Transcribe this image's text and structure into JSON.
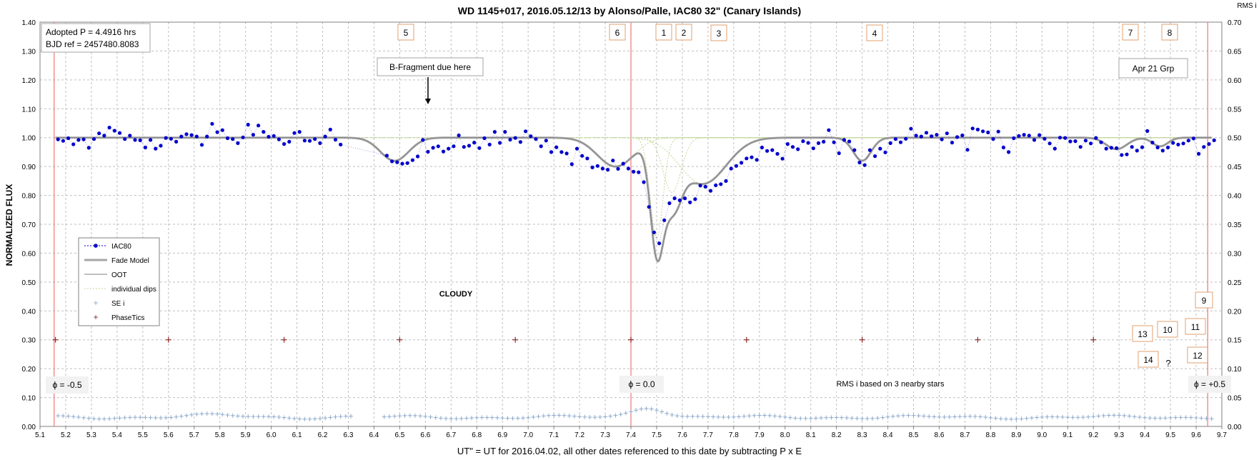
{
  "chart_data": {
    "type": "scatter",
    "title": "WD 1145+017, 2016.05.12/13  by Alonso/Palle,  IAC80 32\" (Canary Islands)",
    "xlabel": "UT\"  = UT for 2016.04.02, all other dates referenced to this date by subtracting P x E",
    "ylabel": "NORMALIZED FLUX",
    "y2label": "RMS i",
    "xlim": [
      5.1,
      9.7
    ],
    "ylim": [
      0.0,
      1.4
    ],
    "y2lim": [
      0.0,
      0.7
    ],
    "grid": true,
    "legend_position": "left-middle",
    "x_ticks": [
      "5.1",
      "5.2",
      "5.3",
      "5.4",
      "5.5",
      "5.6",
      "5.7",
      "5.8",
      "5.9",
      "6.0",
      "6.1",
      "6.2",
      "6.3",
      "6.4",
      "6.5",
      "6.6",
      "6.7",
      "6.8",
      "6.9",
      "7.0",
      "7.1",
      "7.2",
      "7.3",
      "7.4",
      "7.5",
      "7.6",
      "7.7",
      "7.8",
      "7.9",
      "8.0",
      "8.1",
      "8.2",
      "8.3",
      "8.4",
      "8.5",
      "8.6",
      "8.7",
      "8.8",
      "8.9",
      "9.0",
      "9.1",
      "9.2",
      "9.3",
      "9.4",
      "9.5",
      "9.6",
      "9.7"
    ],
    "y_ticks": [
      "0.00",
      "0.10",
      "0.20",
      "0.30",
      "0.40",
      "0.50",
      "0.60",
      "0.70",
      "0.80",
      "0.90",
      "1.00",
      "1.10",
      "1.20",
      "1.30",
      "1.40"
    ],
    "y2_ticks": [
      "0.00",
      "0.05",
      "0.10",
      "0.15",
      "0.20",
      "0.25",
      "0.30",
      "0.35",
      "0.40",
      "0.45",
      "0.50",
      "0.55",
      "0.60",
      "0.65",
      "0.70"
    ],
    "legend": [
      "IAC80",
      "Fade Model",
      "OOT",
      "individual dips",
      "SE i",
      "PhaseTics"
    ],
    "colors": {
      "iac80": "#0000cc",
      "fade": "#a6a6a6",
      "oot": "#808080",
      "dips": "#c4d79b",
      "sei": "#8eaacb",
      "phasetics": "#8b2c2c",
      "phase_line": "#f08080",
      "grid": "#bfbfbf",
      "box_border": "#e0a070"
    },
    "dips": [
      {
        "x": 6.48,
        "depth": 0.08,
        "w": 0.055
      },
      {
        "x": 7.34,
        "depth": 0.1,
        "w": 0.07
      },
      {
        "x": 7.5,
        "depth": 0.35,
        "w": 0.025
      },
      {
        "x": 7.56,
        "depth": 0.19,
        "w": 0.035
      },
      {
        "x": 7.68,
        "depth": 0.16,
        "w": 0.09
      },
      {
        "x": 8.3,
        "depth": 0.08,
        "w": 0.035
      },
      {
        "x": 9.29,
        "depth": 0.04,
        "w": 0.04
      },
      {
        "x": 9.46,
        "depth": 0.03,
        "w": 0.03
      }
    ],
    "phase_tics": [
      5.16,
      5.6,
      6.05,
      6.5,
      6.95,
      7.4,
      7.85,
      8.3,
      8.75,
      9.2
    ],
    "phase_tic_y": 0.3,
    "phase_lines": [
      5.155,
      7.4,
      9.645
    ],
    "series": [
      {
        "name": "IAC80",
        "points": [
          [
            5.17,
            0.994
          ],
          [
            5.19,
            0.989
          ],
          [
            5.21,
            0.998
          ],
          [
            5.23,
            0.977
          ],
          [
            5.25,
            0.992
          ],
          [
            5.27,
            0.994
          ],
          [
            5.29,
            0.965
          ],
          [
            5.31,
            0.995
          ],
          [
            5.33,
            1.015
          ],
          [
            5.35,
            1.007
          ],
          [
            5.37,
            1.035
          ],
          [
            5.39,
            1.024
          ],
          [
            5.41,
            1.016
          ],
          [
            5.43,
            0.995
          ],
          [
            5.45,
            1.007
          ],
          [
            5.47,
            0.992
          ],
          [
            5.49,
            0.991
          ],
          [
            5.51,
            0.966
          ],
          [
            5.53,
            0.992
          ],
          [
            5.55,
            0.962
          ],
          [
            5.57,
            0.972
          ],
          [
            5.59,
            0.999
          ],
          [
            5.61,
            0.996
          ],
          [
            5.63,
            0.986
          ],
          [
            5.65,
            1.004
          ],
          [
            5.67,
            1.012
          ],
          [
            5.69,
            1.009
          ],
          [
            5.71,
            1.004
          ],
          [
            5.73,
            0.975
          ],
          [
            5.75,
            1.004
          ],
          [
            5.77,
            1.048
          ],
          [
            5.79,
            1.019
          ],
          [
            5.81,
            1.026
          ],
          [
            5.83,
            0.998
          ],
          [
            5.85,
            0.995
          ],
          [
            5.87,
            0.981
          ],
          [
            5.89,
            1.001
          ],
          [
            5.91,
            1.045
          ],
          [
            5.93,
            1.01
          ],
          [
            5.95,
            1.042
          ],
          [
            5.97,
            1.02
          ],
          [
            5.99,
            1.003
          ],
          [
            6.01,
            1.006
          ],
          [
            6.03,
            0.994
          ],
          [
            6.05,
            0.978
          ],
          [
            6.07,
            0.986
          ],
          [
            6.09,
            1.016
          ],
          [
            6.11,
            1.02
          ],
          [
            6.13,
            0.99
          ],
          [
            6.15,
            0.989
          ],
          [
            6.17,
            0.995
          ],
          [
            6.19,
            0.981
          ],
          [
            6.21,
            1.004
          ],
          [
            6.23,
            1.028
          ],
          [
            6.25,
            0.993
          ],
          [
            6.27,
            0.976
          ],
          [
            6.45,
            0.938
          ],
          [
            6.47,
            0.918
          ],
          [
            6.49,
            0.915
          ],
          [
            6.51,
            0.91
          ],
          [
            6.53,
            0.912
          ],
          [
            6.55,
            0.922
          ],
          [
            6.57,
            0.935
          ],
          [
            6.59,
            0.992
          ],
          [
            6.61,
            0.951
          ],
          [
            6.63,
            0.965
          ],
          [
            6.65,
            0.97
          ],
          [
            6.67,
            0.952
          ],
          [
            6.69,
            0.962
          ],
          [
            6.71,
            0.97
          ],
          [
            6.73,
            1.008
          ],
          [
            6.75,
            0.968
          ],
          [
            6.77,
            0.972
          ],
          [
            6.79,
            0.983
          ],
          [
            6.81,
            0.964
          ],
          [
            6.83,
            0.998
          ],
          [
            6.85,
            0.976
          ],
          [
            6.87,
            1.02
          ],
          [
            6.89,
            0.982
          ],
          [
            6.91,
            1.02
          ],
          [
            6.93,
            0.993
          ],
          [
            6.95,
            0.999
          ],
          [
            6.97,
            0.985
          ],
          [
            6.99,
            1.022
          ],
          [
            7.01,
            1.005
          ],
          [
            7.03,
            0.995
          ],
          [
            7.05,
            0.97
          ],
          [
            7.07,
            0.99
          ],
          [
            7.09,
            0.95
          ],
          [
            7.11,
            0.967
          ],
          [
            7.13,
            0.95
          ],
          [
            7.15,
            0.945
          ],
          [
            7.17,
            0.908
          ],
          [
            7.19,
            0.962
          ],
          [
            7.21,
            0.937
          ],
          [
            7.23,
            0.928
          ],
          [
            7.25,
            0.897
          ],
          [
            7.27,
            0.902
          ],
          [
            7.29,
            0.893
          ],
          [
            7.31,
            0.889
          ],
          [
            7.33,
            0.921
          ],
          [
            7.35,
            0.892
          ],
          [
            7.37,
            0.91
          ],
          [
            7.39,
            0.893
          ],
          [
            7.41,
            0.882
          ],
          [
            7.43,
            0.88
          ],
          [
            7.45,
            0.846
          ],
          [
            7.47,
            0.76
          ],
          [
            7.49,
            0.672
          ],
          [
            7.51,
            0.634
          ],
          [
            7.53,
            0.714
          ],
          [
            7.55,
            0.773
          ],
          [
            7.57,
            0.79
          ],
          [
            7.59,
            0.783
          ],
          [
            7.61,
            0.79
          ],
          [
            7.63,
            0.776
          ],
          [
            7.65,
            0.787
          ],
          [
            7.67,
            0.834
          ],
          [
            7.69,
            0.83
          ],
          [
            7.71,
            0.816
          ],
          [
            7.73,
            0.835
          ],
          [
            7.75,
            0.839
          ],
          [
            7.77,
            0.85
          ],
          [
            7.79,
            0.893
          ],
          [
            7.81,
            0.902
          ],
          [
            7.83,
            0.913
          ],
          [
            7.85,
            0.928
          ],
          [
            7.87,
            0.932
          ],
          [
            7.89,
            0.923
          ],
          [
            7.91,
            0.966
          ],
          [
            7.93,
            0.954
          ],
          [
            7.95,
            0.957
          ],
          [
            7.97,
            0.944
          ],
          [
            7.99,
            0.927
          ],
          [
            8.01,
            0.978
          ],
          [
            8.03,
            0.968
          ],
          [
            8.05,
            0.96
          ],
          [
            8.07,
            0.988
          ],
          [
            8.09,
            0.982
          ],
          [
            8.11,
            0.963
          ],
          [
            8.13,
            0.981
          ],
          [
            8.15,
            0.986
          ],
          [
            8.17,
            1.026
          ],
          [
            8.19,
            0.984
          ],
          [
            8.21,
            0.946
          ],
          [
            8.23,
            0.992
          ],
          [
            8.25,
            0.987
          ],
          [
            8.27,
            0.957
          ],
          [
            8.29,
            0.914
          ],
          [
            8.31,
            0.905
          ],
          [
            8.33,
            0.957
          ],
          [
            8.35,
            0.936
          ],
          [
            8.37,
            0.962
          ],
          [
            8.39,
            0.949
          ],
          [
            8.41,
            0.981
          ],
          [
            8.43,
            0.995
          ],
          [
            8.45,
            0.984
          ],
          [
            8.47,
            0.996
          ],
          [
            8.49,
            1.031
          ],
          [
            8.51,
            1.007
          ],
          [
            8.53,
            1.004
          ],
          [
            8.55,
            1.017
          ],
          [
            8.57,
            1.005
          ],
          [
            8.59,
            1.01
          ],
          [
            8.61,
            0.994
          ],
          [
            8.63,
            1.015
          ],
          [
            8.65,
            0.983
          ],
          [
            8.67,
            1.002
          ],
          [
            8.69,
            1.008
          ],
          [
            8.71,
            0.958
          ],
          [
            8.73,
            1.032
          ],
          [
            8.75,
            1.028
          ],
          [
            8.77,
            1.022
          ],
          [
            8.79,
            1.018
          ],
          [
            8.81,
            0.995
          ],
          [
            8.83,
            1.021
          ],
          [
            8.85,
            0.966
          ],
          [
            8.87,
            0.95
          ],
          [
            8.89,
            0.998
          ],
          [
            8.91,
            1.006
          ],
          [
            8.93,
            1.01
          ],
          [
            8.95,
            1.007
          ],
          [
            8.97,
            0.992
          ],
          [
            8.99,
            1.009
          ],
          [
            9.01,
            0.996
          ],
          [
            9.03,
            0.98
          ],
          [
            9.05,
            0.962
          ],
          [
            9.07,
            1.0
          ],
          [
            9.09,
            0.999
          ],
          [
            9.11,
            0.987
          ],
          [
            9.13,
            0.988
          ],
          [
            9.15,
            0.968
          ],
          [
            9.17,
            0.99
          ],
          [
            9.19,
            0.98
          ],
          [
            9.21,
            0.999
          ],
          [
            9.23,
            0.984
          ],
          [
            9.25,
            0.962
          ],
          [
            9.27,
            0.965
          ],
          [
            9.29,
            0.964
          ],
          [
            9.31,
            0.94
          ],
          [
            9.33,
            0.942
          ],
          [
            9.35,
            0.968
          ],
          [
            9.37,
            0.955
          ],
          [
            9.39,
            0.967
          ],
          [
            9.41,
            1.023
          ],
          [
            9.43,
            0.983
          ],
          [
            9.45,
            0.966
          ],
          [
            9.47,
            0.955
          ],
          [
            9.49,
            0.966
          ],
          [
            9.51,
            0.982
          ],
          [
            9.53,
            0.976
          ],
          [
            9.55,
            0.98
          ],
          [
            9.57,
            0.99
          ],
          [
            9.59,
            0.997
          ],
          [
            9.61,
            0.944
          ],
          [
            9.63,
            0.968
          ],
          [
            9.65,
            0.978
          ],
          [
            9.67,
            0.991
          ]
        ]
      },
      {
        "name": "SE i",
        "segments": [
          [
            5.17,
            6.32
          ],
          [
            6.44,
            9.67
          ]
        ],
        "base": 0.032
      }
    ],
    "annotations": [
      {
        "text": "Adopted P = 4.4916 hrs",
        "kind": "box"
      },
      {
        "text": "BJD ref = 2457480.8083",
        "kind": "box"
      },
      {
        "text": "B-Fragment due here",
        "kind": "arrow-box"
      },
      {
        "text": "Apr 21 Grp",
        "kind": "box"
      },
      {
        "text": "CLOUDY",
        "kind": "text"
      },
      {
        "text": "RMS i based on 3 nearby stars",
        "kind": "text"
      },
      {
        "text": "ϕ = -0.5",
        "kind": "phase-label"
      },
      {
        "text": "ϕ = 0.0",
        "kind": "phase-label"
      },
      {
        "text": "ϕ = +0.5",
        "kind": "phase-label"
      },
      {
        "text": "?",
        "kind": "text"
      }
    ],
    "numbered_boxes": [
      "1",
      "2",
      "3",
      "4",
      "5",
      "6",
      "7",
      "8",
      "9",
      "10",
      "11",
      "12",
      "13",
      "14"
    ]
  }
}
